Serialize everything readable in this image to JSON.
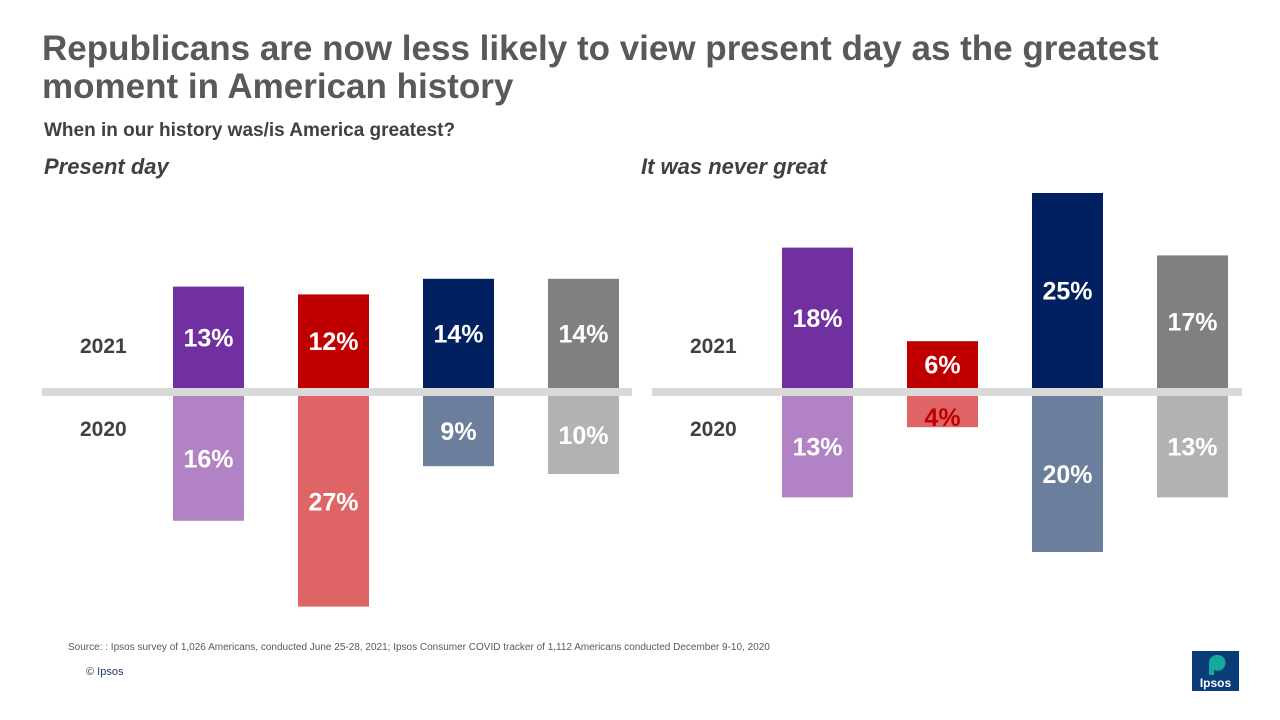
{
  "title": "Republicans are now less likely to view present day as the greatest moment in American history",
  "subtitle": "When in our history was/is America greatest?",
  "footer": {
    "source": "Source: : Ipsos survey of 1,026 Americans, conducted June 25-28, 2021; Ipsos Consumer COVID tracker of 1,112 Americans conducted December 9-10, 2020",
    "copyright": "© Ipsos",
    "logo_text": "Ipsos"
  },
  "chart_data": [
    {
      "type": "bar",
      "title": "Present day",
      "row_labels": {
        "top": "2021",
        "bottom": "2020"
      },
      "series": [
        {
          "values": [
            13,
            12,
            14,
            14
          ],
          "colors": [
            "#7030a0",
            "#c00000",
            "#002060",
            "#808080"
          ],
          "label_colors": [
            "#ffffff",
            "#ffffff",
            "#ffffff",
            "#ffffff"
          ]
        },
        {
          "values": [
            16,
            27,
            9,
            10
          ],
          "colors": [
            "#b283c4",
            "#de6465",
            "#6b7f9c",
            "#b2b2b2"
          ],
          "label_colors": [
            "#ffffff",
            "#ffffff",
            "#ffffff",
            "#ffffff"
          ]
        }
      ]
    },
    {
      "type": "bar",
      "title": "It was never great",
      "row_labels": {
        "top": "2021",
        "bottom": "2020"
      },
      "series": [
        {
          "values": [
            18,
            6,
            25,
            17
          ],
          "colors": [
            "#7030a0",
            "#c00000",
            "#002060",
            "#808080"
          ],
          "label_colors": [
            "#ffffff",
            "#ffffff",
            "#ffffff",
            "#ffffff"
          ]
        },
        {
          "values": [
            13,
            4,
            20,
            13
          ],
          "colors": [
            "#b283c4",
            "#de6465",
            "#6b7f9c",
            "#b2b2b2"
          ],
          "label_colors": [
            "#ffffff",
            "#c00000",
            "#ffffff",
            "#ffffff"
          ]
        }
      ]
    }
  ]
}
